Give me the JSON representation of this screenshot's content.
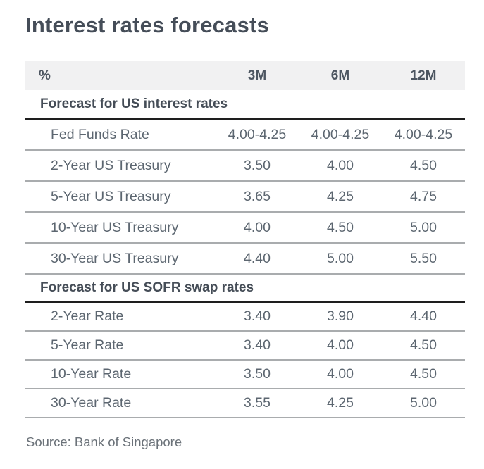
{
  "chart_data": {
    "type": "table",
    "title": "Interest rates forecasts",
    "unit": "%",
    "columns": [
      "3M",
      "6M",
      "12M"
    ],
    "sections": [
      {
        "heading": "Forecast for US interest rates",
        "rows": [
          {
            "label": "Fed Funds Rate",
            "values": [
              "4.00-4.25",
              "4.00-4.25",
              "4.00-4.25"
            ]
          },
          {
            "label": "2-Year US Treasury",
            "values": [
              "3.50",
              "4.00",
              "4.50"
            ]
          },
          {
            "label": "5-Year US Treasury",
            "values": [
              "3.65",
              "4.25",
              "4.75"
            ]
          },
          {
            "label": "10-Year US Treasury",
            "values": [
              "4.00",
              "4.50",
              "5.00"
            ]
          },
          {
            "label": "30-Year US Treasury",
            "values": [
              "4.40",
              "5.00",
              "5.50"
            ]
          }
        ]
      },
      {
        "heading": "Forecast for US SOFR swap rates",
        "rows": [
          {
            "label": "2-Year Rate",
            "values": [
              "3.40",
              "3.90",
              "4.40"
            ]
          },
          {
            "label": "5-Year Rate",
            "values": [
              "3.40",
              "4.00",
              "4.50"
            ]
          },
          {
            "label": "10-Year Rate",
            "values": [
              "3.50",
              "4.00",
              "4.50"
            ]
          },
          {
            "label": "30-Year Rate",
            "values": [
              "3.55",
              "4.25",
              "5.00"
            ]
          }
        ]
      }
    ],
    "source": "Source: Bank of Singapore",
    "layout": {
      "legend": "none",
      "grid": "horizontal-rules"
    },
    "colors": {
      "title_text": "#454d58",
      "header_band_bg": "#f1f1f2",
      "header_band_text": "#4d5661",
      "section_heading_text": "#454d57",
      "row_text": "#5c6670",
      "thick_rule": "#1e1e1e",
      "thin_rule": "#a9acae",
      "source_text": "#6b7279",
      "background": "#ffffff"
    }
  }
}
